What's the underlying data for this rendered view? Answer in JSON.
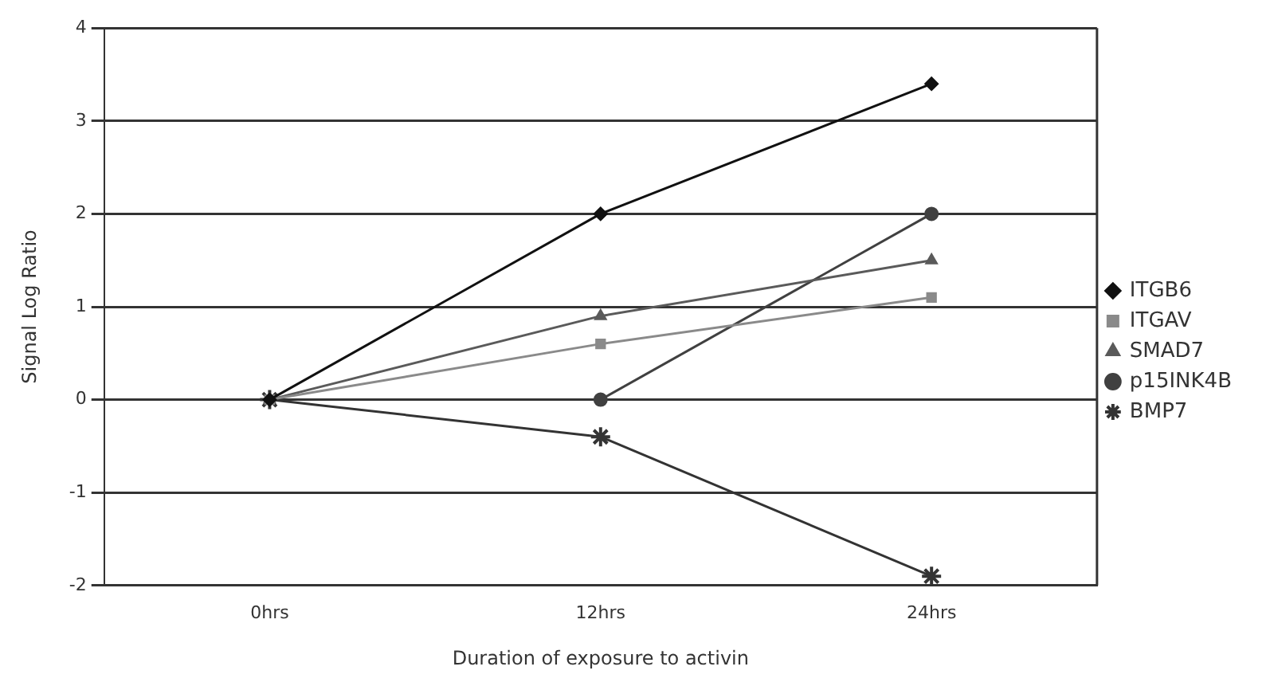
{
  "chart_data": {
    "type": "line",
    "xlabel": "Duration of exposure to activin",
    "ylabel": "Signal Log Ratio",
    "categories": [
      "0hrs",
      "12hrs",
      "24hrs"
    ],
    "series": [
      {
        "name": "ITGB6",
        "color": "#111111",
        "marker": "diamond",
        "values": [
          0,
          2,
          3.4
        ]
      },
      {
        "name": "ITGAV",
        "color": "#8a8a8a",
        "marker": "square",
        "values": [
          0,
          0.6,
          1.1
        ]
      },
      {
        "name": "SMAD7",
        "color": "#5a5a5a",
        "marker": "triangle",
        "values": [
          0,
          0.9,
          1.5
        ]
      },
      {
        "name": "p15INK4B",
        "color": "#404040",
        "marker": "circle",
        "values": [
          null,
          0,
          2
        ]
      },
      {
        "name": "BMP7",
        "color": "#333333",
        "marker": "cross",
        "values": [
          0,
          -0.4,
          -1.9
        ]
      }
    ],
    "ylim": [
      -2,
      4
    ],
    "yticks": [
      -2,
      -1,
      0,
      1,
      2,
      3,
      4
    ],
    "grid": "y",
    "legend": "right"
  }
}
